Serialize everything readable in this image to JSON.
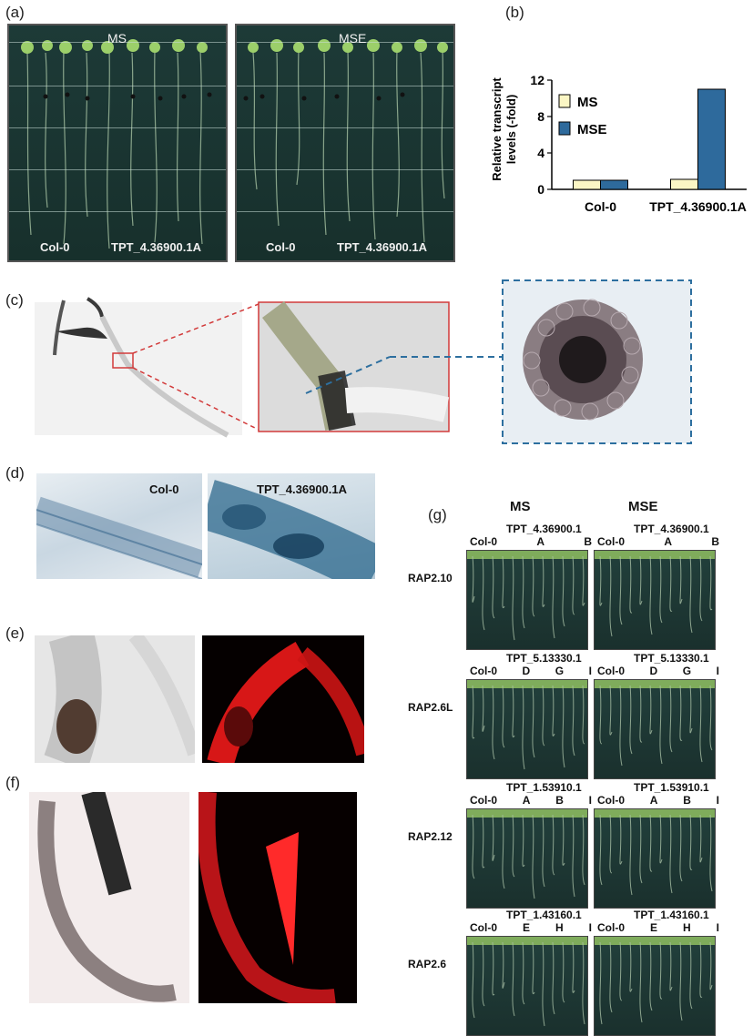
{
  "panel_a": {
    "label": "(a)",
    "plates": [
      {
        "title": "MS",
        "left_label": "Col-0",
        "right_label": "TPT_4.36900.1A"
      },
      {
        "title": "MSE",
        "left_label": "Col-0",
        "right_label": "TPT_4.36900.1A"
      }
    ]
  },
  "panel_b": {
    "label": "(b)"
  },
  "panel_c": {
    "label": "(c)"
  },
  "panel_d": {
    "label": "(d)",
    "left_label": "Col-0",
    "right_label": "TPT_4.36900.1A"
  },
  "panel_e": {
    "label": "(e)"
  },
  "panel_f": {
    "label": "(f)"
  },
  "panel_g": {
    "label": "(g)",
    "col_headers": [
      "MS",
      "MSE"
    ],
    "rows": [
      {
        "gene": "RAP2.10",
        "tpt": "TPT_4.36900.1",
        "lines": [
          "Col-0",
          "A",
          "B"
        ]
      },
      {
        "gene": "RAP2.6L",
        "tpt": "TPT_5.13330.1",
        "lines": [
          "Col-0",
          "D",
          "G",
          "I"
        ]
      },
      {
        "gene": "RAP2.12",
        "tpt": "TPT_1.53910.1",
        "lines": [
          "Col-0",
          "A",
          "B",
          "I"
        ]
      },
      {
        "gene": "RAP2.6",
        "tpt": "TPT_1.43160.1",
        "lines": [
          "Col-0",
          "E",
          "H",
          "I"
        ]
      }
    ]
  },
  "chart_data": {
    "type": "bar",
    "categories": [
      "Col-0",
      "TPT_4.36900.1A"
    ],
    "series": [
      {
        "name": "MS",
        "values": [
          1,
          1.1
        ],
        "color": "#fbf6c4"
      },
      {
        "name": "MSE",
        "values": [
          1,
          11
        ],
        "color": "#2e6a9c"
      }
    ],
    "ylabel": "Relative transcript levels (-fold)",
    "ylim": [
      0,
      12
    ],
    "yticks": [
      "0",
      "4",
      "8",
      "12"
    ],
    "legend": "top-left"
  }
}
